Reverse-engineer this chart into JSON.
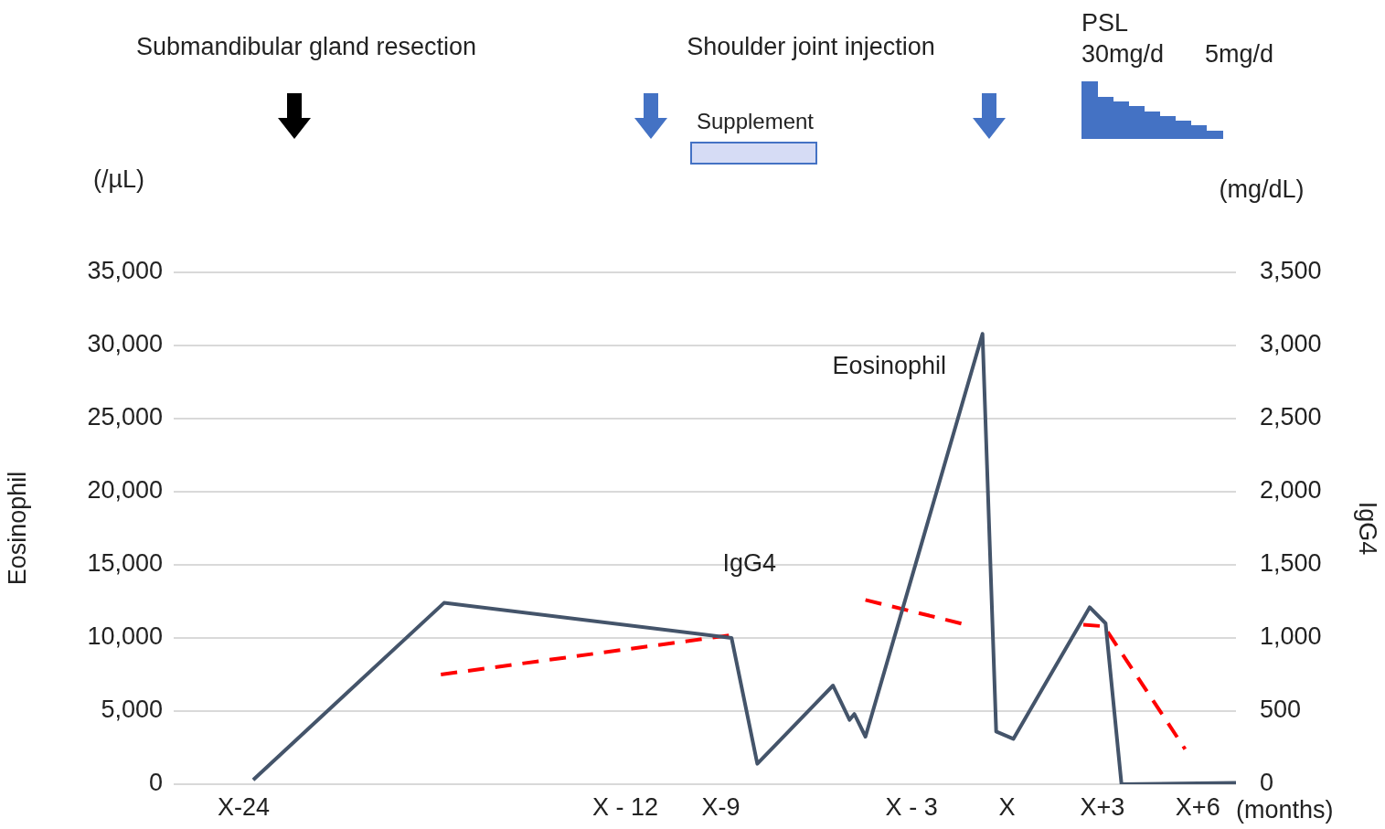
{
  "chart_data": {
    "type": "line",
    "xlabel": "(months)",
    "ylabel": "Eosinophil",
    "y2label": "IgG4",
    "annotations": [
      "Submandibular gland resection",
      "Shoulder joint injection",
      "Supplement",
      "PSL",
      "30mg/d",
      "5mg/d",
      "(/µL)",
      "(mg/dL)"
    ],
    "xlim": [
      -26.2,
      7.2
    ],
    "xticks": [
      {
        "value": -24,
        "label": "X-24"
      },
      {
        "value": -12,
        "label": "X - 12"
      },
      {
        "value": -9,
        "label": "X-9"
      },
      {
        "value": -3,
        "label": "X - 3"
      },
      {
        "value": 0,
        "label": "X"
      },
      {
        "value": 3,
        "label": "X+3"
      },
      {
        "value": 6,
        "label": "X+6"
      }
    ],
    "ylim": [
      0,
      35000
    ],
    "yticks": [
      0,
      {
        "value": 5000,
        "label": "5,000"
      },
      {
        "value": 10000,
        "label": "10,000"
      },
      {
        "value": 15000,
        "label": "15,000"
      },
      {
        "value": 20000,
        "label": "20,000"
      },
      {
        "value": 25000,
        "label": "25,000"
      },
      {
        "value": 30000,
        "label": "30,000"
      },
      {
        "value": 35000,
        "label": "35,000"
      }
    ],
    "y2lim": [
      0,
      3500
    ],
    "y2ticks": [
      0,
      500,
      {
        "value": 1000,
        "label": "1,000"
      },
      {
        "value": 1500,
        "label": "1,500"
      },
      {
        "value": 2000,
        "label": "2,000"
      },
      {
        "value": 2500,
        "label": "2,500"
      },
      {
        "value": 3000,
        "label": "3,000"
      },
      {
        "value": 3500,
        "label": "3,500"
      }
    ],
    "grid": "y",
    "marker": "none",
    "series": [
      {
        "name": "Eosinophil",
        "color": "#44546a",
        "line_style": "solid",
        "x": [
          -23.7,
          -17.7,
          -8.66,
          -7.85,
          -5.47,
          -4.95,
          -4.8,
          -4.45,
          -0.77,
          -0.34,
          0.2,
          2.6,
          3.1,
          3.6,
          7.2
        ],
        "values": [
          300,
          12400,
          10000,
          1400,
          6750,
          4400,
          4800,
          3250,
          30800,
          3600,
          3100,
          12100,
          11000,
          0,
          100
        ]
      },
      {
        "name": "IgG4",
        "axis": "y2",
        "color": "#ff0000",
        "line_style": "dashed",
        "x": [
          -17.8,
          -8.66,
          -6,
          -4.45,
          -1.27,
          1,
          2.4,
          3.05,
          5.6
        ],
        "values": [
          750,
          1020,
          null,
          1260,
          1090,
          null,
          1090,
          1080,
          240
        ]
      }
    ]
  }
}
